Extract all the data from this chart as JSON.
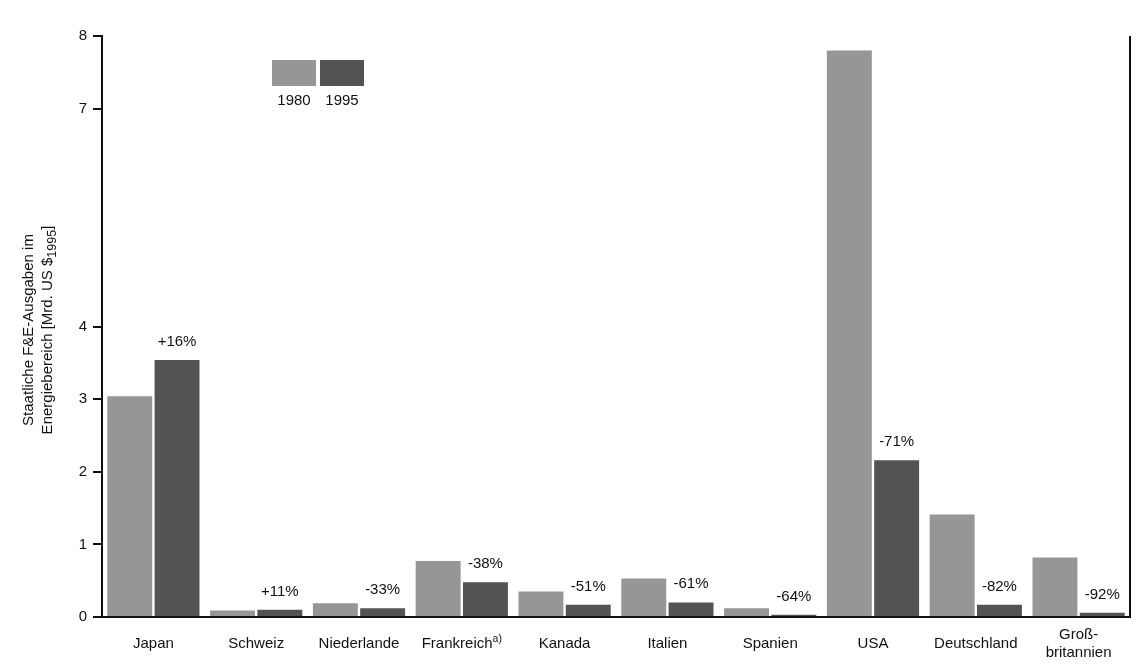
{
  "chart_data": {
    "type": "bar",
    "ylabel": "Staatliche F&E-Ausgaben im\nEnergiebereich [Mrd. US $$_{1995}$]",
    "categories": [
      "Japan",
      "Schweiz",
      "Niederlande",
      "Frankreich$^{a)}$",
      "Kanada",
      "Italien",
      "Spanien",
      "USA",
      "Deutschland",
      "Groß-britannien"
    ],
    "series": [
      {
        "name": "1980",
        "color": "#969696",
        "values": [
          3.04,
          0.09,
          0.19,
          0.77,
          0.35,
          0.53,
          0.12,
          7.8,
          1.41,
          0.82
        ]
      },
      {
        "name": "1995",
        "color": "#535353",
        "values": [
          3.54,
          0.1,
          0.12,
          0.48,
          0.17,
          0.2,
          0.03,
          2.16,
          0.17,
          0.06
        ]
      }
    ],
    "annotations": [
      {
        "text": "+16%",
        "x": "Japan",
        "y": 3.54
      },
      {
        "text": "+11%",
        "x": "Schweiz",
        "y": 0.1
      },
      {
        "text": "-33%",
        "x": "Niederlande",
        "y": 0.12
      },
      {
        "text": "-38%",
        "x": "Frankreich$^{a)}$",
        "y": 0.48
      },
      {
        "text": "-51%",
        "x": "Kanada",
        "y": 0.17
      },
      {
        "text": "-61%",
        "x": "Italien",
        "y": 0.2
      },
      {
        "text": "-64%",
        "x": "Spanien",
        "y": 0.03
      },
      {
        "text": "-71%",
        "x": "USA",
        "y": 2.16
      },
      {
        "text": "-82%",
        "x": "Deutschland",
        "y": 0.17
      },
      {
        "text": "-92%",
        "x": "Groß-britannien",
        "y": 0.06
      }
    ],
    "ylim": [
      0,
      8
    ],
    "yticks": [
      0,
      1,
      2,
      3,
      4,
      7,
      8
    ],
    "grid": false,
    "legend": "top left"
  }
}
